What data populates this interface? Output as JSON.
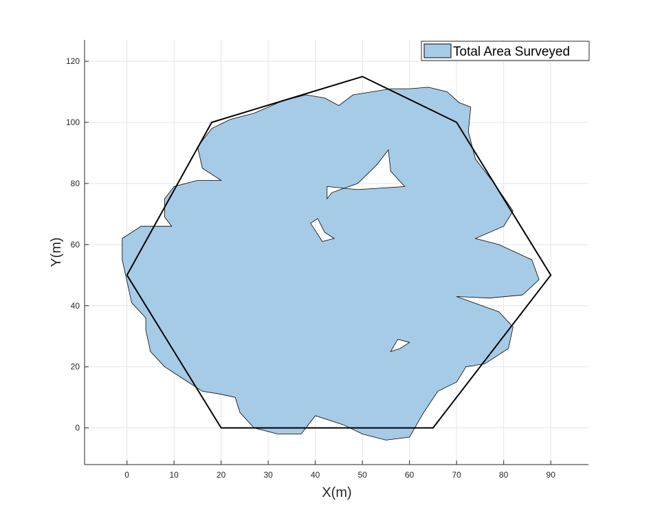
{
  "chart_data": {
    "type": "area",
    "title": "",
    "xlabel": "X(m)",
    "ylabel": "Y(m)",
    "xlim": [
      -9,
      98
    ],
    "ylim": [
      -12,
      127
    ],
    "xticks": [
      0,
      10,
      20,
      30,
      40,
      50,
      60,
      70,
      80,
      90
    ],
    "yticks": [
      0,
      20,
      40,
      60,
      80,
      100,
      120
    ],
    "grid": true,
    "legend": {
      "placement": "top-right",
      "entries": [
        "Total Area Surveyed"
      ]
    },
    "colors": {
      "fill": "#a6cbe7",
      "edge": "#000000",
      "grid": "#e3e3e3",
      "axis": "#262626"
    },
    "series": [
      {
        "name": "Total Area Surveyed",
        "kind": "filled-region",
        "outline": [
          [
            27,
            103
          ],
          [
            33,
            107
          ],
          [
            38,
            109
          ],
          [
            42,
            108
          ],
          [
            45,
            105.5
          ],
          [
            48,
            109
          ],
          [
            52,
            110
          ],
          [
            56,
            111
          ],
          [
            60,
            111
          ],
          [
            64,
            111.5
          ],
          [
            68,
            110
          ],
          [
            70.5,
            106.5
          ],
          [
            73,
            105
          ],
          [
            72.5,
            97
          ],
          [
            74,
            88
          ],
          [
            78,
            80
          ],
          [
            82,
            71
          ],
          [
            80,
            66
          ],
          [
            74,
            62
          ],
          [
            79,
            60
          ],
          [
            86,
            55
          ],
          [
            87.5,
            48.5
          ],
          [
            84,
            43.5
          ],
          [
            77,
            42.5
          ],
          [
            70,
            43
          ],
          [
            79,
            38
          ],
          [
            82,
            33
          ],
          [
            81,
            26
          ],
          [
            76,
            21
          ],
          [
            72,
            20
          ],
          [
            70,
            15
          ],
          [
            66,
            12
          ],
          [
            63,
            5
          ],
          [
            60,
            -3
          ],
          [
            55,
            -4
          ],
          [
            50,
            -2
          ],
          [
            46,
            1
          ],
          [
            40,
            4
          ],
          [
            37,
            -2
          ],
          [
            32,
            -2
          ],
          [
            27,
            0
          ],
          [
            24,
            5
          ],
          [
            23,
            10
          ],
          [
            20,
            11
          ],
          [
            16,
            12
          ],
          [
            12,
            16
          ],
          [
            8,
            20
          ],
          [
            5,
            25
          ],
          [
            4,
            32
          ],
          [
            4,
            36
          ],
          [
            1,
            41
          ],
          [
            0,
            48
          ],
          [
            -1,
            55
          ],
          [
            -1,
            62
          ],
          [
            3,
            66
          ],
          [
            9.5,
            66
          ],
          [
            8,
            69
          ],
          [
            8,
            75
          ],
          [
            10,
            79
          ],
          [
            15,
            81
          ],
          [
            20,
            81
          ],
          [
            16,
            85
          ],
          [
            15,
            92
          ],
          [
            18,
            98
          ],
          [
            22,
            101
          ]
        ],
        "holes": [
          [
            [
              42.5,
              79
            ],
            [
              49,
              78
            ],
            [
              59,
              79
            ],
            [
              56,
              84
            ],
            [
              55.5,
              91
            ],
            [
              53,
              86
            ],
            [
              49,
              80
            ],
            [
              43.5,
              77
            ],
            [
              42.5,
              75
            ]
          ],
          [
            [
              39,
              67
            ],
            [
              40.5,
              68.5
            ],
            [
              42,
              64
            ],
            [
              44,
              62
            ],
            [
              41.5,
              61
            ]
          ],
          [
            [
              56,
              25
            ],
            [
              58,
              26
            ],
            [
              60,
              28
            ],
            [
              57.5,
              29
            ]
          ]
        ]
      },
      {
        "name": "",
        "kind": "boundary",
        "values": [
          [
            0,
            50
          ],
          [
            18,
            100
          ],
          [
            50,
            115
          ],
          [
            70,
            100
          ],
          [
            90,
            50
          ],
          [
            65,
            0
          ],
          [
            20,
            0
          ],
          [
            0,
            50
          ]
        ]
      }
    ]
  }
}
